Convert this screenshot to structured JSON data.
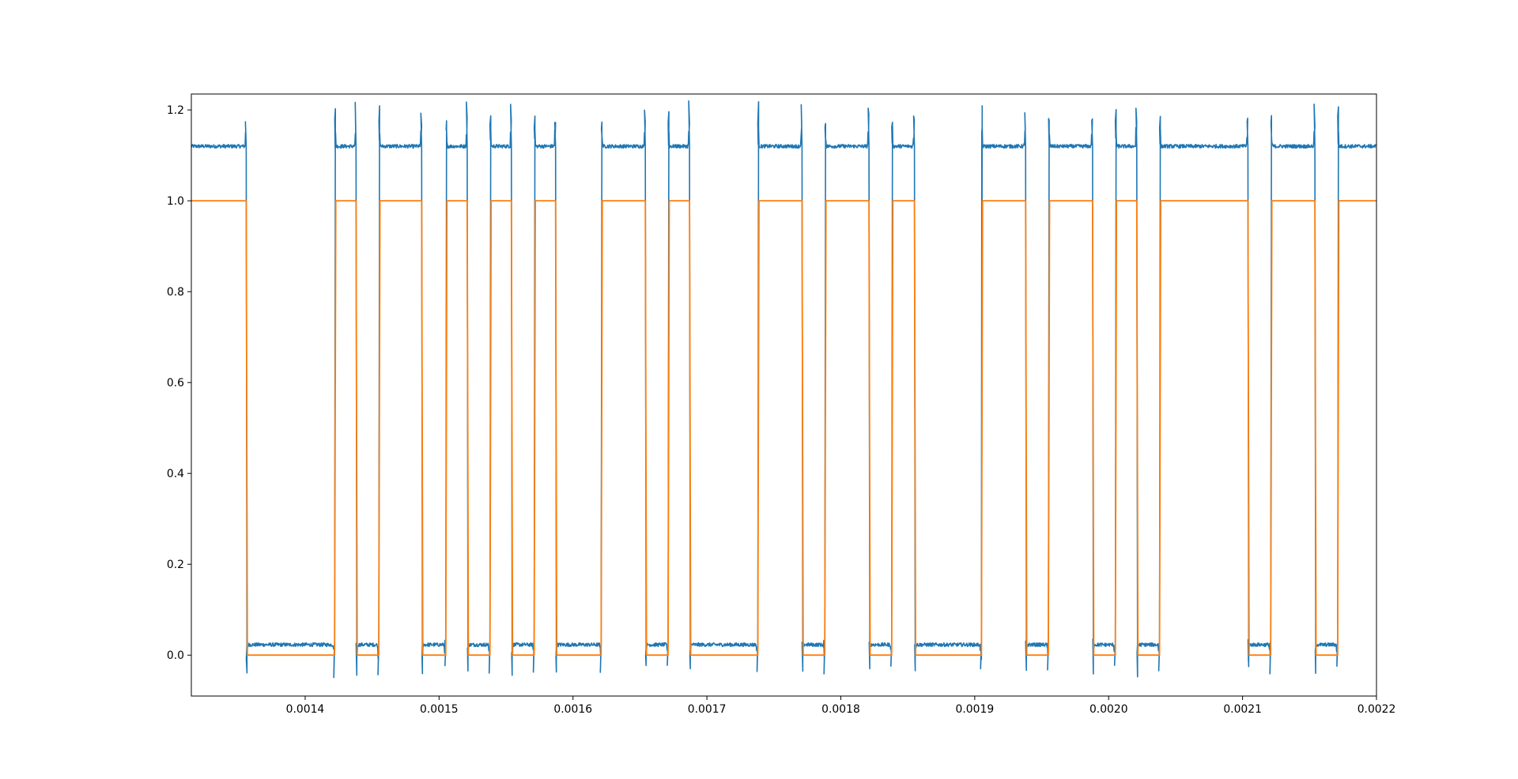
{
  "chart_data": {
    "type": "line",
    "title": "",
    "xlabel": "",
    "ylabel": "",
    "xlim": [
      0.001315,
      0.0022
    ],
    "ylim": [
      -0.09,
      1.235
    ],
    "grid": false,
    "x_ticks": [
      {
        "value": 0.0014,
        "label": "0.0014"
      },
      {
        "value": 0.0015,
        "label": "0.0015"
      },
      {
        "value": 0.0016,
        "label": "0.0016"
      },
      {
        "value": 0.0017,
        "label": "0.0017"
      },
      {
        "value": 0.0018,
        "label": "0.0018"
      },
      {
        "value": 0.0019,
        "label": "0.0019"
      },
      {
        "value": 0.002,
        "label": "0.0020"
      },
      {
        "value": 0.0021,
        "label": "0.0021"
      },
      {
        "value": 0.0022,
        "label": "0.0022"
      }
    ],
    "y_ticks": [
      {
        "value": 0.0,
        "label": "0.0"
      },
      {
        "value": 0.2,
        "label": "0.2"
      },
      {
        "value": 0.4,
        "label": "0.4"
      },
      {
        "value": 0.6,
        "label": "0.6"
      },
      {
        "value": 0.8,
        "label": "0.8"
      },
      {
        "value": 1.0,
        "label": "1.0"
      },
      {
        "value": 1.2,
        "label": "1.2"
      }
    ],
    "series": [
      {
        "kind": "analog",
        "color": "#1f77b4",
        "high_level": 1.12,
        "low_level": 0.023,
        "noise": 0.004,
        "overshoot_high": 1.2,
        "undershoot_low": -0.05,
        "edges": [
          0.001356,
          0.001422,
          0.001438,
          0.001455,
          0.001487,
          0.001505,
          0.001521,
          0.001538,
          0.001554,
          0.001571,
          0.001587,
          0.001621,
          0.001654,
          0.001671,
          0.001687,
          0.001738,
          0.001771,
          0.001788,
          0.001821,
          0.001838,
          0.001855,
          0.001905,
          0.001938,
          0.001955,
          0.001988,
          0.002005,
          0.002021,
          0.002038,
          0.002104,
          0.002121,
          0.002154,
          0.002171
        ]
      },
      {
        "kind": "digital",
        "color": "#ff7f0e",
        "high_level": 1.0,
        "low_level": 0.0,
        "start_level": 1.0,
        "edges": [
          0.001356,
          0.001422,
          0.001438,
          0.001455,
          0.001487,
          0.001505,
          0.001521,
          0.001538,
          0.001554,
          0.001571,
          0.001587,
          0.001621,
          0.001654,
          0.001671,
          0.001687,
          0.001738,
          0.001771,
          0.001788,
          0.001821,
          0.001838,
          0.001855,
          0.001905,
          0.001938,
          0.001955,
          0.001988,
          0.002005,
          0.002021,
          0.002038,
          0.002104,
          0.002121,
          0.002154,
          0.002171
        ]
      }
    ]
  }
}
